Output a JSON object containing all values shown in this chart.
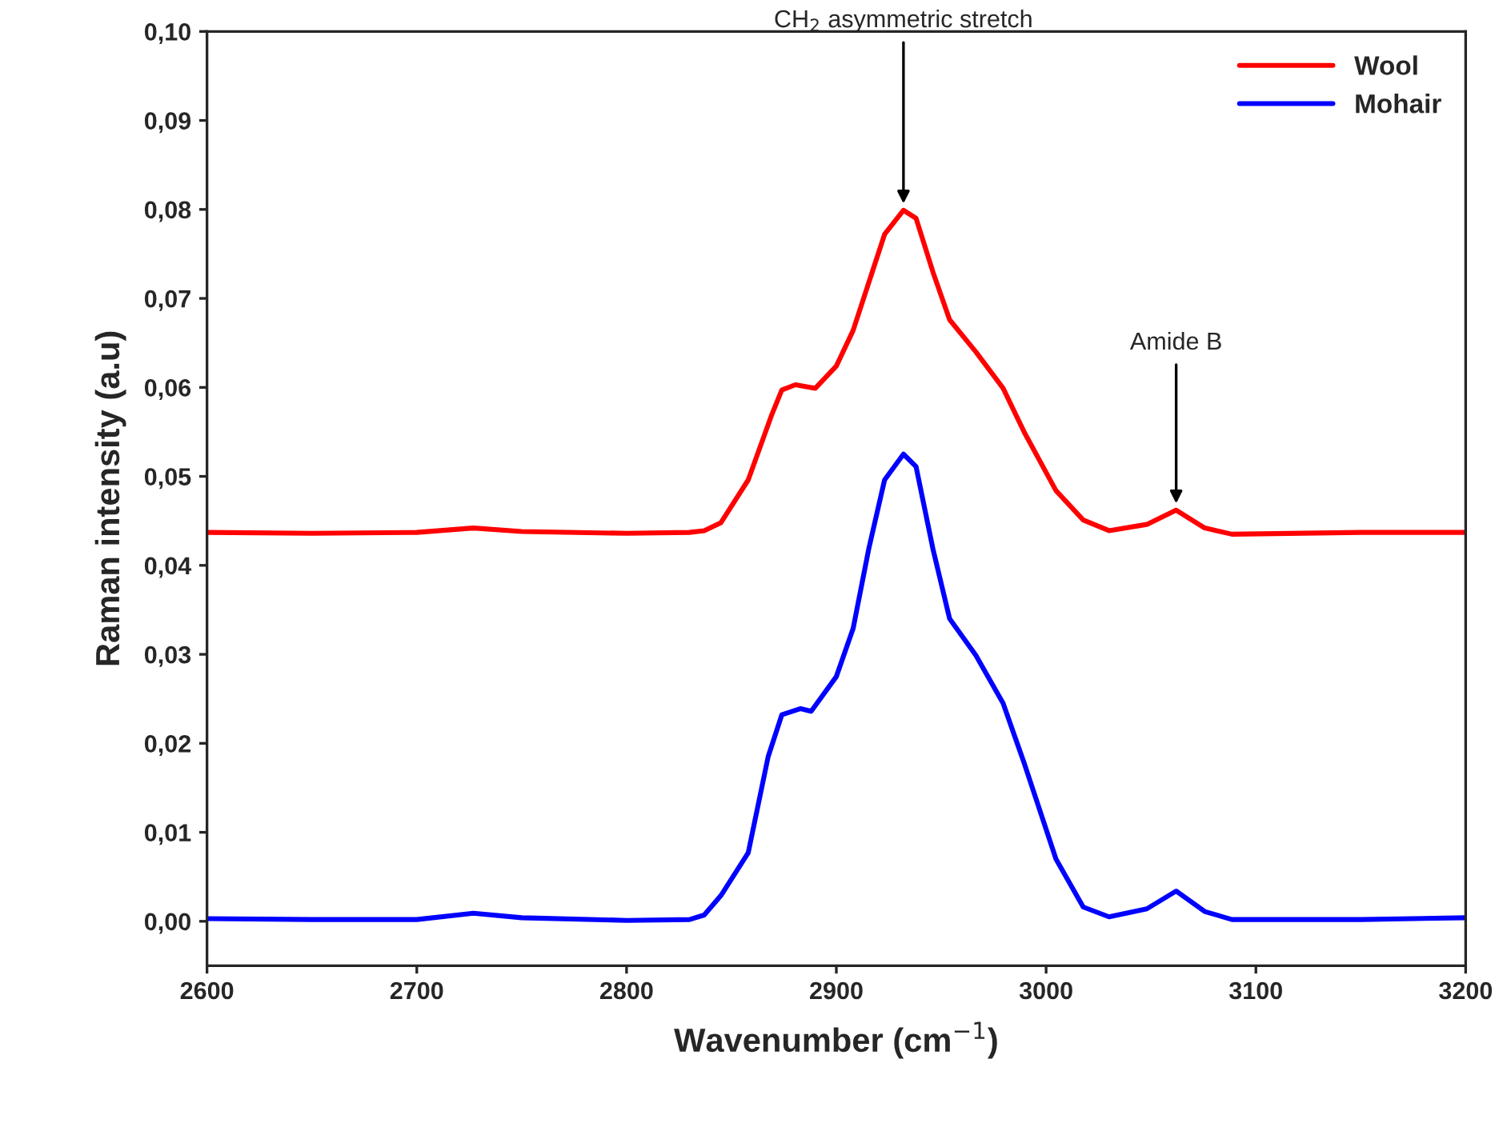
{
  "chart_data": {
    "type": "line",
    "xlabel": "Wavenumber (cm$^{−1}$)",
    "ylabel": "Raman intensity (a.u)",
    "xlim": [
      2600,
      3200
    ],
    "xticks": [
      2600,
      2700,
      2800,
      2900,
      3000,
      3100,
      3200
    ],
    "ylim": [
      -0.005,
      0.1
    ],
    "yticks": [
      {
        "value": 0,
        "label": "0,00"
      },
      {
        "value": 0.01,
        "label": "0,01"
      },
      {
        "value": 0.02,
        "label": "0,02"
      },
      {
        "value": 0.03,
        "label": "0,03"
      },
      {
        "value": 0.04,
        "label": "0,04"
      },
      {
        "value": 0.05,
        "label": "0,05"
      },
      {
        "value": 0.06,
        "label": "0,06"
      },
      {
        "value": 0.07,
        "label": "0,07"
      },
      {
        "value": 0.08,
        "label": "0,08"
      },
      {
        "value": 0.09,
        "label": "0,09"
      },
      {
        "value": 0.1,
        "label": "0,10"
      }
    ],
    "grid": false,
    "legend": "top right",
    "marker": "none",
    "line_style": "solid",
    "series": [
      {
        "name": "Wool",
        "color": "#ff0000",
        "x": [
          2600,
          2650,
          2700,
          2727,
          2750,
          2800,
          2830,
          2837,
          2845,
          2858,
          2869,
          2874,
          2880.5,
          2890,
          2900,
          2908,
          2915.5,
          2923,
          2932,
          2938,
          2946,
          2954,
          2966.5,
          2979.5,
          2989.5,
          3004.7,
          3017.7,
          3030,
          3048,
          3062,
          3075.6,
          3088.6,
          3150,
          3200
        ],
        "values": [
          0.0437,
          0.0436,
          0.0437,
          0.0442,
          0.0438,
          0.0436,
          0.0437,
          0.0439,
          0.0448,
          0.0496,
          0.0568,
          0.0597,
          0.0603,
          0.0599,
          0.0624,
          0.0664,
          0.0718,
          0.0772,
          0.0799,
          0.079,
          0.073,
          0.0676,
          0.064,
          0.0599,
          0.055,
          0.0484,
          0.0451,
          0.0439,
          0.0446,
          0.0462,
          0.0442,
          0.0435,
          0.0437,
          0.0437
        ]
      },
      {
        "name": "Mohair",
        "color": "#0000ff",
        "x": [
          2600,
          2650,
          2700,
          2727,
          2750,
          2800,
          2830,
          2837,
          2845,
          2858,
          2867.5,
          2874,
          2883,
          2888,
          2900,
          2908,
          2915.5,
          2923,
          2932,
          2938,
          2946,
          2954,
          2966.5,
          2979.5,
          2989.5,
          3004.7,
          3017.7,
          3030,
          3048,
          3062,
          3075.6,
          3088.6,
          3150,
          3200
        ],
        "values": [
          0.0003,
          0.0002,
          0.0002,
          0.0009,
          0.0004,
          0.0001,
          0.0002,
          0.0007,
          0.0029,
          0.0077,
          0.0185,
          0.0232,
          0.0239,
          0.0236,
          0.0275,
          0.0329,
          0.0419,
          0.0496,
          0.0525,
          0.0511,
          0.0419,
          0.034,
          0.0299,
          0.0245,
          0.0178,
          0.007,
          0.0016,
          0.0005,
          0.0014,
          0.0034,
          0.0011,
          0.0002,
          0.0002,
          0.0004
        ]
      }
    ],
    "annotations": [
      {
        "text": "CH$_{2}$ asymmetric stretch",
        "x": 2932,
        "y": 0.0799
      },
      {
        "text": "Amide B",
        "x": 3062,
        "y": 0.0462
      }
    ]
  }
}
